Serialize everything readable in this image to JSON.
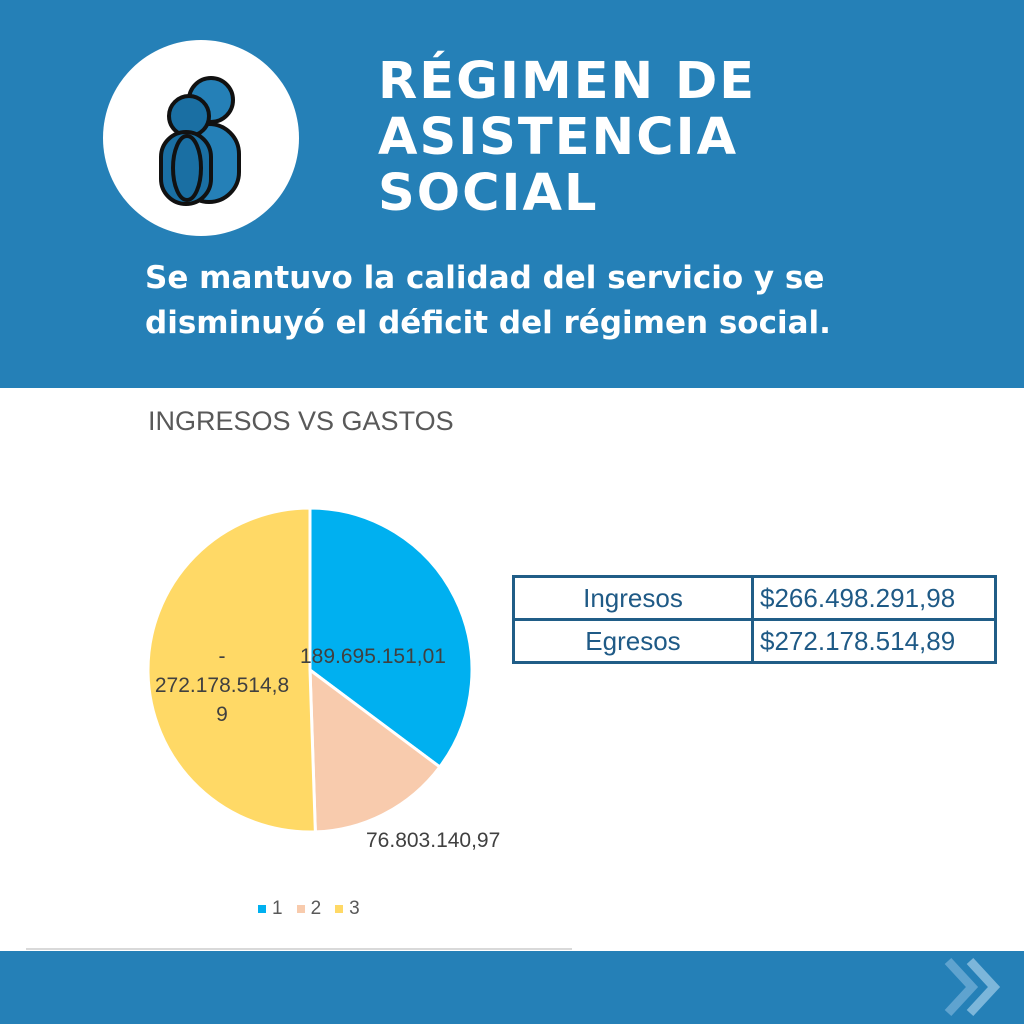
{
  "header": {
    "title": "RÉGIMEN DE\nASISTENCIA\nSOCIAL",
    "subtitle": "Se mantuvo la calidad del servicio y se disminuyó el déficit del régimen social.",
    "logo_icon": "people-icon",
    "background_color": "#2580b7"
  },
  "summary_table": {
    "rows": [
      {
        "label": "Ingresos",
        "value": "$266.498.291,98"
      },
      {
        "label": "Egresos",
        "value": "$272.178.514,89"
      }
    ]
  },
  "chart_data": {
    "type": "pie",
    "title": "INGRESOS VS GASTOS",
    "slices": [
      {
        "category": "1",
        "value": 189695151.01,
        "label": "189.695.151,01",
        "color": "#00b0f0"
      },
      {
        "category": "2",
        "value": 76803140.97,
        "label": "76.803.140,97",
        "color": "#f8cbad"
      },
      {
        "category": "3",
        "value": -272178514.89,
        "label": "-\n272.178.514,8\n9",
        "color": "#ffd966"
      }
    ],
    "legend": [
      "1",
      "2",
      "3"
    ],
    "legend_position": "bottom"
  },
  "footer": {
    "icon": "double-chevron-right-icon"
  }
}
